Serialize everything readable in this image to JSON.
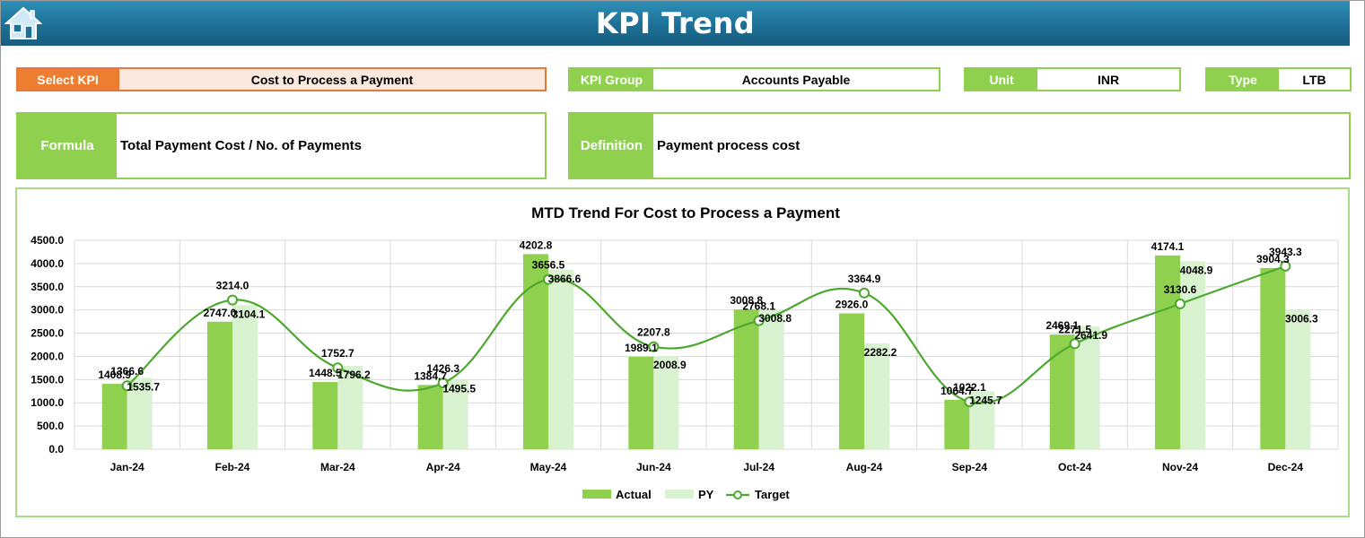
{
  "header": {
    "title": "KPI Trend",
    "home_icon": "home-icon"
  },
  "filters": {
    "select_kpi_label": "Select KPI",
    "select_kpi_value": "Cost to Process a Payment",
    "kpi_group_label": "KPI Group",
    "kpi_group_value": "Accounts Payable",
    "unit_label": "Unit",
    "unit_value": "INR",
    "type_label": "Type",
    "type_value": "LTB"
  },
  "info": {
    "formula_label": "Formula",
    "formula_value": "Total Payment Cost / No. of Payments",
    "definition_label": "Definition",
    "definition_value": "Payment process cost"
  },
  "colors": {
    "accent_orange": "#ED7D31",
    "accent_green": "#8FD14F",
    "py_color": "#D9F2D0",
    "target_color": "#4EA72E",
    "header_blue": "#1D6F96"
  },
  "chart_data": {
    "type": "bar",
    "title": "MTD Trend For Cost to Process a Payment",
    "categories": [
      "Jan-24",
      "Feb-24",
      "Mar-24",
      "Apr-24",
      "May-24",
      "Jun-24",
      "Jul-24",
      "Aug-24",
      "Sep-24",
      "Oct-24",
      "Nov-24",
      "Dec-24"
    ],
    "ylim": [
      0,
      4500
    ],
    "yticks": [
      "0.0",
      "500.0",
      "1000.0",
      "1500.0",
      "2000.0",
      "2500.0",
      "3000.0",
      "3500.0",
      "4000.0",
      "4500.0"
    ],
    "grid": true,
    "legend_position": "bottom",
    "series": [
      {
        "name": "Actual",
        "type": "bar",
        "color": "#8FD14F",
        "values": [
          1408.9,
          2747.0,
          1448.5,
          1384.7,
          4202.8,
          1989.1,
          3008.8,
          2926.0,
          1064.7,
          2469.1,
          4174.1,
          3904.3
        ],
        "labels": [
          "1408.9",
          "2747.0",
          "1448.5",
          "1384.7",
          "4202.8",
          "1989.1",
          "3008.8",
          "2926.0",
          "1064.7",
          "2469.1",
          "4174.1",
          "3904.3"
        ]
      },
      {
        "name": "PY",
        "type": "bar",
        "color": "#D9F2D0",
        "values": [
          1535.7,
          3104.1,
          1796.2,
          1495.5,
          3866.6,
          2008.9,
          3008.8,
          2282.2,
          1245.7,
          2641.9,
          4048.9,
          3006.3
        ],
        "labels": [
          "1535.7",
          "3104.1",
          "1796.2",
          "1495.5",
          "3866.6",
          "2008.9",
          "3008.8",
          "2282.2",
          "1245.7",
          "2641.9",
          "4048.9",
          "3006.3"
        ]
      },
      {
        "name": "Target",
        "type": "line",
        "color": "#4EA72E",
        "values": [
          1366.6,
          3214.0,
          1752.7,
          1426.3,
          3656.5,
          2207.8,
          2768.1,
          3364.9,
          1022.1,
          2271.5,
          3130.6,
          3943.3
        ],
        "labels": [
          "1366.6",
          "3214.0",
          "1752.7",
          "1426.3",
          "3656.5",
          "2207.8",
          "2768.1",
          "3364.9",
          "1022.1",
          "2271.5",
          "3130.6",
          "3943.3"
        ]
      }
    ]
  }
}
